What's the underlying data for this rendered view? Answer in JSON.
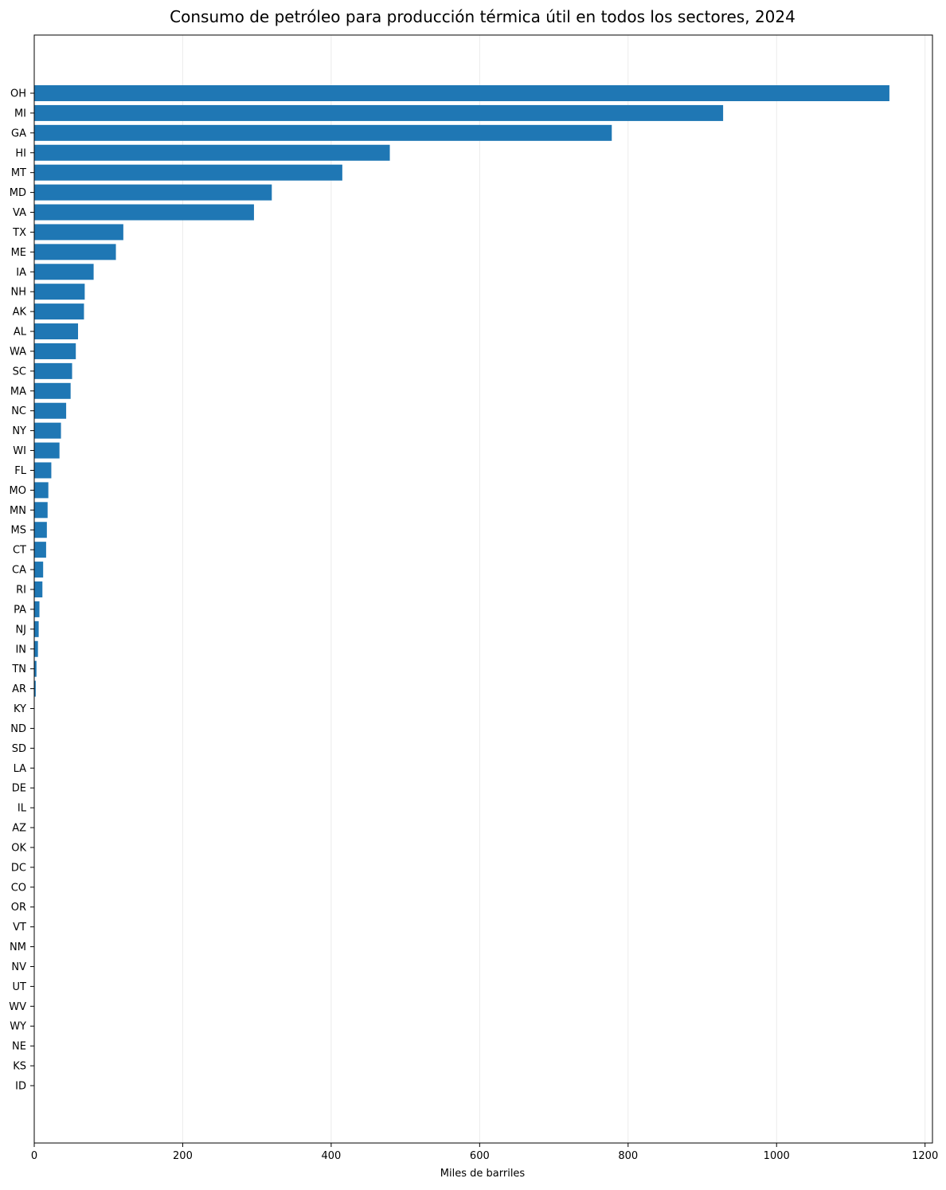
{
  "chart_data": {
    "type": "bar",
    "orientation": "horizontal",
    "title": "Consumo de petróleo para producción térmica útil en todos los sectores, 2024",
    "xlabel": "Miles de barriles",
    "ylabel": "",
    "xlim": [
      0,
      1210
    ],
    "xticks": [
      0,
      200,
      400,
      600,
      800,
      1000,
      1200
    ],
    "grid": "vertical",
    "bar_color": "#1f77b4",
    "categories": [
      "OH",
      "MI",
      "GA",
      "HI",
      "MT",
      "MD",
      "VA",
      "TX",
      "ME",
      "IA",
      "NH",
      "AK",
      "AL",
      "WA",
      "SC",
      "MA",
      "NC",
      "NY",
      "WI",
      "FL",
      "MO",
      "MN",
      "MS",
      "CT",
      "CA",
      "RI",
      "PA",
      "NJ",
      "IN",
      "TN",
      "AR",
      "KY",
      "ND",
      "SD",
      "LA",
      "DE",
      "IL",
      "AZ",
      "OK",
      "DC",
      "CO",
      "OR",
      "VT",
      "NM",
      "NV",
      "UT",
      "WV",
      "WY",
      "NE",
      "KS",
      "ID"
    ],
    "values": [
      1152,
      928,
      778,
      479,
      415,
      320,
      296,
      120,
      110,
      80,
      68,
      67,
      59,
      56,
      51,
      49,
      43,
      36,
      34,
      23,
      19,
      18,
      17,
      16,
      12,
      11,
      7,
      6,
      5,
      3,
      2,
      0.5,
      0.3,
      0.3,
      0.2,
      0.2,
      0.2,
      0.1,
      0.1,
      0.1,
      0.1,
      0.1,
      0.1,
      0.1,
      0.1,
      0.1,
      0,
      0,
      0,
      0,
      0
    ]
  }
}
